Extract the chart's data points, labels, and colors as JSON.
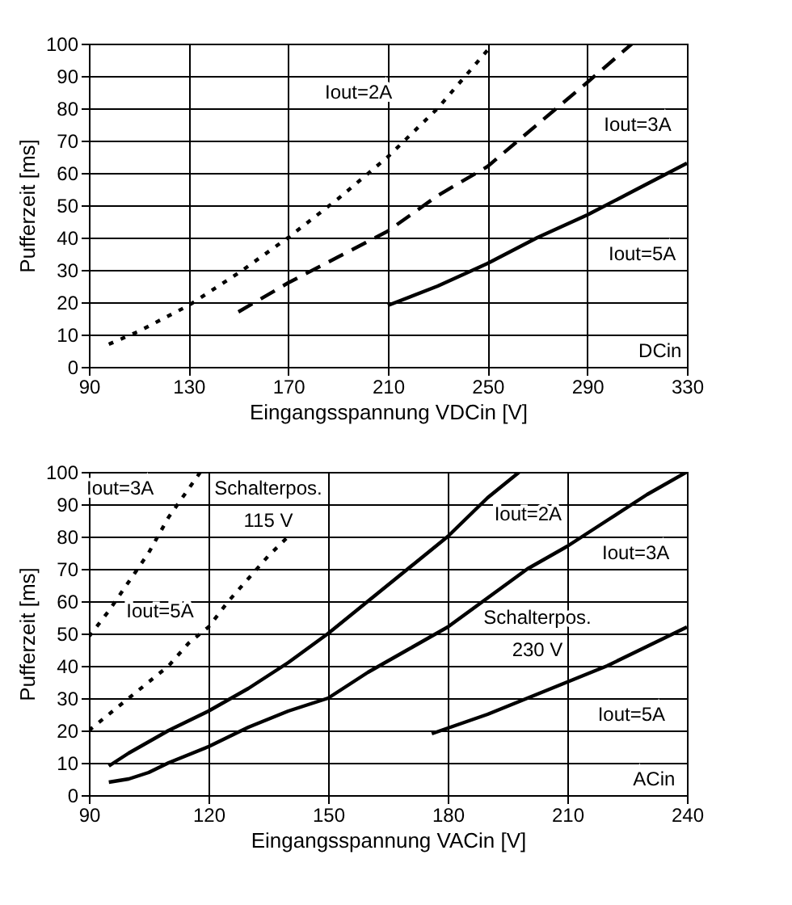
{
  "chart_data": [
    {
      "type": "line",
      "xlabel": "Eingangsspannung VDCin [V]",
      "ylabel": "Pufferzeit [ms]",
      "xlim": [
        90,
        330
      ],
      "xticks": [
        90,
        130,
        170,
        210,
        250,
        290,
        330
      ],
      "ylim": [
        0,
        100
      ],
      "yticks": [
        0,
        10,
        20,
        30,
        40,
        50,
        60,
        70,
        80,
        90,
        100
      ],
      "grid": true,
      "series": [
        {
          "name": "Iout=2A",
          "color": "#000000",
          "line_style": "dotted",
          "x": [
            98,
            110,
            130,
            150,
            170,
            190,
            210,
            230,
            250
          ],
          "values": [
            7,
            11,
            19,
            29,
            40,
            52,
            65,
            80,
            98
          ]
        },
        {
          "name": "Iout=3A",
          "color": "#000000",
          "line_style": "dashed",
          "x": [
            150,
            170,
            190,
            210,
            230,
            250,
            270,
            290,
            308
          ],
          "values": [
            17,
            26,
            34,
            42,
            53,
            62,
            75,
            88,
            100
          ]
        },
        {
          "name": "Iout=5A",
          "color": "#000000",
          "line_style": "solid",
          "x": [
            210,
            230,
            250,
            270,
            290,
            310,
            330
          ],
          "values": [
            19,
            25,
            32,
            40,
            47,
            55,
            63
          ]
        }
      ],
      "annotations": [
        "DCin"
      ]
    },
    {
      "type": "line",
      "xlabel": "Eingangsspannung VACin [V]",
      "ylabel": "Pufferzeit [ms]",
      "xlim": [
        90,
        240
      ],
      "xticks": [
        90,
        120,
        150,
        180,
        210,
        240
      ],
      "ylim": [
        0,
        100
      ],
      "yticks": [
        0,
        10,
        20,
        30,
        40,
        50,
        60,
        70,
        80,
        90,
        100
      ],
      "grid": true,
      "series": [
        {
          "name": "Iout=3A",
          "color": "#000000",
          "line_style": "dotted",
          "x": [
            90,
            95,
            100,
            105,
            110,
            114,
            118
          ],
          "values": [
            49,
            57,
            66,
            75,
            86,
            93,
            100
          ]
        },
        {
          "name": "Iout=5A",
          "color": "#000000",
          "line_style": "dotted",
          "x": [
            90,
            95,
            100,
            105,
            110,
            115,
            120,
            125,
            130,
            135,
            140
          ],
          "values": [
            20,
            25,
            30,
            35,
            40,
            47,
            52,
            60,
            67,
            74,
            80
          ]
        },
        {
          "name": "Iout=2A",
          "color": "#000000",
          "line_style": "solid",
          "x": [
            95,
            100,
            110,
            120,
            130,
            140,
            150,
            160,
            170,
            180,
            190,
            198
          ],
          "values": [
            9,
            13,
            20,
            26,
            33,
            41,
            50,
            60,
            70,
            80,
            92,
            100
          ]
        },
        {
          "name": "Iout=3A",
          "color": "#000000",
          "line_style": "solid",
          "x": [
            95,
            100,
            105,
            110,
            120,
            130,
            140,
            150,
            160,
            170,
            180,
            190,
            200,
            210,
            220,
            230,
            240
          ],
          "values": [
            4,
            5,
            7,
            10,
            15,
            21,
            26,
            30,
            38,
            45,
            52,
            61,
            70,
            77,
            85,
            93,
            100
          ]
        },
        {
          "name": "Iout=5A",
          "color": "#000000",
          "line_style": "solid",
          "x": [
            176,
            190,
            200,
            210,
            220,
            230,
            240
          ],
          "values": [
            19,
            25,
            30,
            35,
            40,
            46,
            52
          ]
        }
      ],
      "annotations": [
        "Schalterpos.\n115 V",
        "Schalterpos.\n230 V",
        "ACin"
      ]
    }
  ]
}
